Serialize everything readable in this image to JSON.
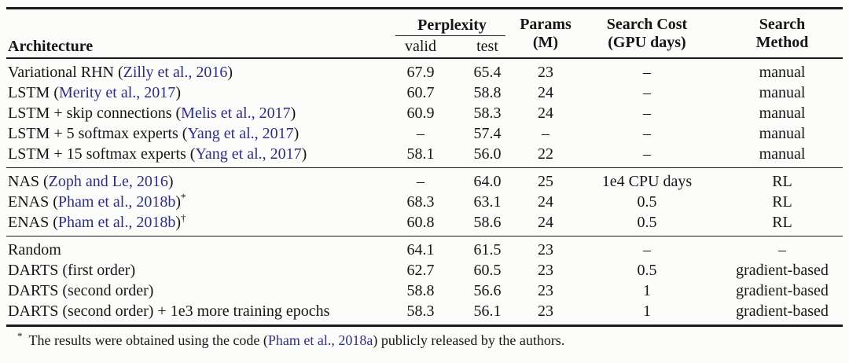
{
  "colors": {
    "bg": "#fcfcfa",
    "text": "#161616",
    "rule": "#1b1b1b",
    "link": "#2e2e85"
  },
  "table": {
    "header": {
      "architecture": "Architecture",
      "perplexity": "Perplexity",
      "valid": "valid",
      "test": "test",
      "params": [
        "Params",
        "(M)"
      ],
      "search_cost": [
        "Search Cost",
        "(GPU days)"
      ],
      "search_method": [
        "Search",
        "Method"
      ]
    },
    "groups": [
      {
        "rows": [
          {
            "arch": [
              {
                "text": "Variational RHN (",
                "cite": false
              },
              {
                "text": "Zilly et al., 2016",
                "cite": true
              },
              {
                "text": ")",
                "cite": false
              }
            ],
            "sup": "",
            "valid": "67.9",
            "test": "65.4",
            "params": "23",
            "cost": "–",
            "method": "manual"
          },
          {
            "arch": [
              {
                "text": "LSTM (",
                "cite": false
              },
              {
                "text": "Merity et al., 2017",
                "cite": true
              },
              {
                "text": ")",
                "cite": false
              }
            ],
            "sup": "",
            "valid": "60.7",
            "test": "58.8",
            "params": "24",
            "cost": "–",
            "method": "manual"
          },
          {
            "arch": [
              {
                "text": "LSTM + skip connections (",
                "cite": false
              },
              {
                "text": "Melis et al., 2017",
                "cite": true
              },
              {
                "text": ")",
                "cite": false
              }
            ],
            "sup": "",
            "valid": "60.9",
            "test": "58.3",
            "params": "24",
            "cost": "–",
            "method": "manual"
          },
          {
            "arch": [
              {
                "text": "LSTM + 5 softmax experts (",
                "cite": false
              },
              {
                "text": "Yang et al., 2017",
                "cite": true
              },
              {
                "text": ")",
                "cite": false
              }
            ],
            "sup": "",
            "valid": "–",
            "test": "57.4",
            "params": "–",
            "cost": "–",
            "method": "manual"
          },
          {
            "arch": [
              {
                "text": "LSTM + 15 softmax experts (",
                "cite": false
              },
              {
                "text": "Yang et al., 2017",
                "cite": true
              },
              {
                "text": ")",
                "cite": false
              }
            ],
            "sup": "",
            "valid": "58.1",
            "test": "56.0",
            "params": "22",
            "cost": "–",
            "method": "manual"
          }
        ]
      },
      {
        "rows": [
          {
            "arch": [
              {
                "text": "NAS (",
                "cite": false
              },
              {
                "text": "Zoph and Le, 2016",
                "cite": true
              },
              {
                "text": ")",
                "cite": false
              }
            ],
            "sup": "",
            "valid": "–",
            "test": "64.0",
            "params": "25",
            "cost": "1e4 CPU days",
            "method": "RL"
          },
          {
            "arch": [
              {
                "text": "ENAS (",
                "cite": false
              },
              {
                "text": "Pham et al., 2018b",
                "cite": true
              },
              {
                "text": ")",
                "cite": false
              }
            ],
            "sup": "*",
            "valid": "68.3",
            "test": "63.1",
            "params": "24",
            "cost": "0.5",
            "method": "RL"
          },
          {
            "arch": [
              {
                "text": "ENAS (",
                "cite": false
              },
              {
                "text": "Pham et al., 2018b",
                "cite": true
              },
              {
                "text": ")",
                "cite": false
              }
            ],
            "sup": "†",
            "valid": "60.8",
            "test": "58.6",
            "params": "24",
            "cost": "0.5",
            "method": "RL"
          }
        ]
      },
      {
        "rows": [
          {
            "arch": [
              {
                "text": "Random",
                "cite": false
              }
            ],
            "sup": "",
            "valid": "64.1",
            "test": "61.5",
            "params": "23",
            "cost": "–",
            "method": "–"
          },
          {
            "arch": [
              {
                "text": "DARTS (first order)",
                "cite": false
              }
            ],
            "sup": "",
            "valid": "62.7",
            "test": "60.5",
            "params": "23",
            "cost": "0.5",
            "method": "gradient-based"
          },
          {
            "arch": [
              {
                "text": "DARTS (second order)",
                "cite": false
              }
            ],
            "sup": "",
            "valid": "58.8",
            "test": "56.6",
            "params": "23",
            "cost": "1",
            "method": "gradient-based"
          },
          {
            "arch": [
              {
                "text": "DARTS (second order) + 1e3 more training epochs",
                "cite": false
              }
            ],
            "sup": "",
            "valid": "58.3",
            "test": "56.1",
            "params": "23",
            "cost": "1",
            "method": "gradient-based"
          }
        ]
      }
    ]
  },
  "footnote": {
    "marker": "*",
    "segments": [
      {
        "text": "The results were obtained using the code (",
        "cite": false
      },
      {
        "text": "Pham et al., 2018a",
        "cite": true
      },
      {
        "text": ") publicly released by the authors.",
        "cite": false
      }
    ]
  }
}
